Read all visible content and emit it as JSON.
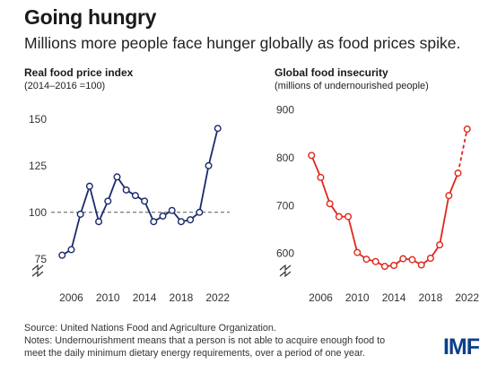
{
  "header": {
    "title": "Going hungry",
    "subtitle": "Millions more people face hunger globally as food prices spike."
  },
  "chart_data": [
    {
      "type": "line",
      "title": "Real food price index",
      "subtitle": "(2014–2016 =100)",
      "x": [
        2005,
        2006,
        2007,
        2008,
        2009,
        2010,
        2011,
        2012,
        2013,
        2014,
        2015,
        2016,
        2017,
        2018,
        2019,
        2020,
        2021,
        2022
      ],
      "values": [
        77,
        80,
        99,
        114,
        95,
        106,
        119,
        112,
        109,
        106,
        95,
        98,
        101,
        95,
        96,
        100,
        125,
        145
      ],
      "xticks": [
        "2006",
        "2010",
        "2014",
        "2018",
        "2022"
      ],
      "yticks": [
        "75",
        "100",
        "125",
        "150"
      ],
      "ylim": [
        60,
        160
      ],
      "xlim": [
        2003.8,
        2023.3
      ],
      "reference_line": 100,
      "axis_break": true,
      "color": "#1b2a6b",
      "grid": false
    },
    {
      "type": "line",
      "title": "Global food insecurity",
      "subtitle": "(millions of undernourished people)",
      "x": [
        2005,
        2006,
        2007,
        2008,
        2009,
        2010,
        2011,
        2012,
        2013,
        2014,
        2015,
        2016,
        2017,
        2018,
        2019,
        2020,
        2021,
        2022
      ],
      "values": [
        805,
        759,
        704,
        677,
        677,
        602,
        588,
        583,
        573,
        575,
        589,
        587,
        576,
        590,
        618,
        721,
        768,
        860
      ],
      "dashed_from_index": 16,
      "xticks": [
        "2006",
        "2010",
        "2014",
        "2018",
        "2022"
      ],
      "yticks": [
        "600",
        "700",
        "800",
        "900"
      ],
      "ylim": [
        530,
        920
      ],
      "xlim": [
        2003.8,
        2023.3
      ],
      "axis_break": true,
      "color": "#e0261b",
      "grid": false
    }
  ],
  "footer": {
    "source": "Source: United Nations Food and Agriculture Organization.",
    "notes_line1": "Notes: Undernourishment means that a person is not able to acquire enough food to",
    "notes_line2": "meet the daily minimum dietary energy requirements, over a period of one year."
  },
  "logo": {
    "text": "IMF",
    "color": "#0b3f8c"
  }
}
